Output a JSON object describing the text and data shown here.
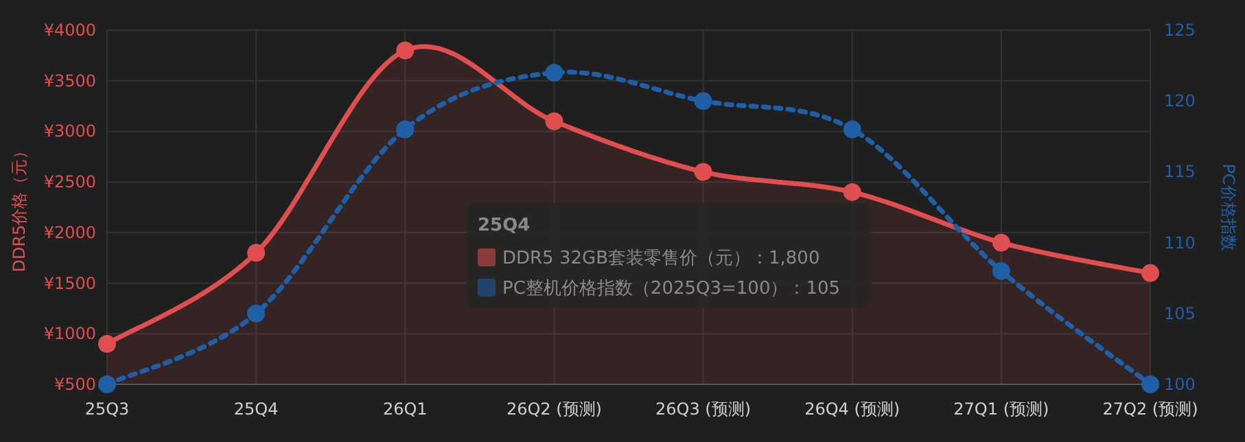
{
  "chart_data": {
    "type": "line",
    "categories": [
      "25Q3",
      "25Q4",
      "26Q1",
      "26Q2 (预测)",
      "26Q3 (预测)",
      "26Q4 (预测)",
      "27Q1 (预测)",
      "27Q2 (预测)"
    ],
    "series": [
      {
        "name": "DDR5 32GB套装零售价（元）",
        "type": "area",
        "color": "#e04e50",
        "values": [
          900,
          1800,
          3800,
          3100,
          2600,
          2400,
          1900,
          1600
        ],
        "line_style": "solid"
      },
      {
        "name": "PC整机价格指数（2025Q3=100）",
        "type": "line",
        "axis": "y2",
        "color": "#1f5fa8",
        "values": [
          100,
          105,
          118,
          122,
          120,
          118,
          108,
          100
        ],
        "line_style": "dotted"
      }
    ],
    "ylabel": "DDR5价格（元）",
    "y2label": "PC价格指数",
    "ylim": [
      500,
      4000
    ],
    "yticks": [
      {
        "value": 500,
        "label": "¥500"
      },
      {
        "value": 1000,
        "label": "¥1000"
      },
      {
        "value": 1500,
        "label": "¥1500"
      },
      {
        "value": 2000,
        "label": "¥2000"
      },
      {
        "value": 2500,
        "label": "¥2500"
      },
      {
        "value": 3000,
        "label": "¥3000"
      },
      {
        "value": 3500,
        "label": "¥3500"
      },
      {
        "value": 4000,
        "label": "¥4000"
      }
    ],
    "y2lim": [
      100,
      125
    ],
    "y2ticks": [
      100,
      105,
      110,
      115,
      120,
      125
    ],
    "grid": true,
    "marker": "circle",
    "legend": "center",
    "legend_title": "25Q4",
    "annotations": [
      "：1,800",
      "：105"
    ]
  }
}
